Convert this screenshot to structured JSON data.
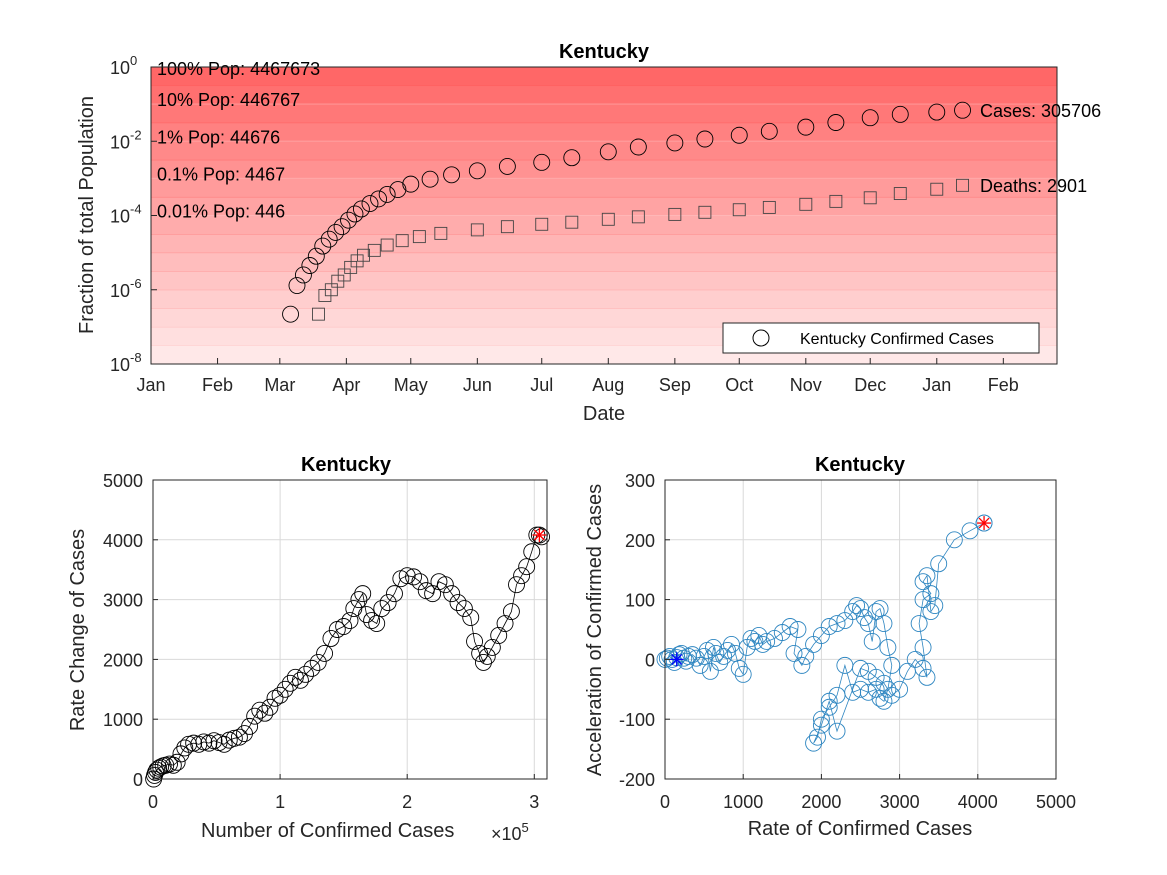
{
  "chart_data": [
    {
      "type": "scatter",
      "title": "Kentucky",
      "xlabel": "Date",
      "ylabel": "Fraction of total Population",
      "yscale": "log",
      "ylim": [
        1e-08,
        1
      ],
      "y_tick_exponents": [
        "0",
        "-2",
        "-4",
        "-6",
        "-8"
      ],
      "x_tick_labels": [
        "Jan",
        "Feb",
        "Mar",
        "Apr",
        "May",
        "Jun",
        "Jul",
        "Aug",
        "Sep",
        "Oct",
        "Nov",
        "Dec",
        "Jan",
        "Feb"
      ],
      "background_bands": "red shading by population fraction",
      "band_color": "#ff5a5a",
      "population_labels": [
        "100% Pop: 4467673",
        "10% Pop: 446767",
        "1% Pop: 44676",
        "0.1% Pop: 4467",
        "0.01% Pop: 446"
      ],
      "population_levels": [
        1,
        0.1,
        0.01,
        0.001,
        0.0001
      ],
      "legend": {
        "label": "Kentucky Confirmed Cases",
        "position": "bottom-right"
      },
      "series": [
        {
          "name": "Kentucky Confirmed Cases",
          "marker": "circle",
          "end_label": "Cases: 305706",
          "points": [
            [
              "2020-03-06",
              2.2e-07
            ],
            [
              "2020-03-09",
              1.3e-06
            ],
            [
              "2020-03-12",
              2.5e-06
            ],
            [
              "2020-03-15",
              4.5e-06
            ],
            [
              "2020-03-18",
              8e-06
            ],
            [
              "2020-03-21",
              1.5e-05
            ],
            [
              "2020-03-24",
              2.3e-05
            ],
            [
              "2020-03-27",
              3.5e-05
            ],
            [
              "2020-03-30",
              5e-05
            ],
            [
              "2020-04-02",
              7.5e-05
            ],
            [
              "2020-04-05",
              0.00011
            ],
            [
              "2020-04-08",
              0.00015
            ],
            [
              "2020-04-12",
              0.00021
            ],
            [
              "2020-04-16",
              0.00028
            ],
            [
              "2020-04-20",
              0.00037
            ],
            [
              "2020-04-25",
              0.0005
            ],
            [
              "2020-05-01",
              0.0007
            ],
            [
              "2020-05-10",
              0.00095
            ],
            [
              "2020-05-20",
              0.00125
            ],
            [
              "2020-06-01",
              0.0016
            ],
            [
              "2020-06-15",
              0.0021
            ],
            [
              "2020-07-01",
              0.0027
            ],
            [
              "2020-07-15",
              0.0036
            ],
            [
              "2020-08-01",
              0.0052
            ],
            [
              "2020-08-15",
              0.007
            ],
            [
              "2020-09-01",
              0.009
            ],
            [
              "2020-09-15",
              0.0115
            ],
            [
              "2020-10-01",
              0.0145
            ],
            [
              "2020-10-15",
              0.0185
            ],
            [
              "2020-11-01",
              0.024
            ],
            [
              "2020-11-15",
              0.032
            ],
            [
              "2020-12-01",
              0.043
            ],
            [
              "2020-12-15",
              0.053
            ],
            [
              "2021-01-01",
              0.061
            ],
            [
              "2021-01-13",
              0.0685
            ]
          ]
        },
        {
          "name": "Deaths",
          "marker": "square",
          "end_label": "Deaths: 2901",
          "points": [
            [
              "2020-03-19",
              2.2e-07
            ],
            [
              "2020-03-22",
              7e-07
            ],
            [
              "2020-03-25",
              1e-06
            ],
            [
              "2020-03-28",
              1.7e-06
            ],
            [
              "2020-03-31",
              2.5e-06
            ],
            [
              "2020-04-03",
              4e-06
            ],
            [
              "2020-04-06",
              6e-06
            ],
            [
              "2020-04-09",
              8.5e-06
            ],
            [
              "2020-04-14",
              1.15e-05
            ],
            [
              "2020-04-20",
              1.6e-05
            ],
            [
              "2020-04-27",
              2.1e-05
            ],
            [
              "2020-05-05",
              2.7e-05
            ],
            [
              "2020-05-15",
              3.3e-05
            ],
            [
              "2020-06-01",
              4.1e-05
            ],
            [
              "2020-06-15",
              5e-05
            ],
            [
              "2020-07-01",
              5.8e-05
            ],
            [
              "2020-07-15",
              6.6e-05
            ],
            [
              "2020-08-01",
              7.9e-05
            ],
            [
              "2020-08-15",
              9.2e-05
            ],
            [
              "2020-09-01",
              0.000107
            ],
            [
              "2020-09-15",
              0.000122
            ],
            [
              "2020-10-01",
              0.000143
            ],
            [
              "2020-10-15",
              0.000165
            ],
            [
              "2020-11-01",
              0.0002
            ],
            [
              "2020-11-15",
              0.00024
            ],
            [
              "2020-12-01",
              0.0003
            ],
            [
              "2020-12-15",
              0.00039
            ],
            [
              "2021-01-01",
              0.00051
            ],
            [
              "2021-01-13",
              0.00065
            ]
          ]
        }
      ]
    },
    {
      "type": "scatter",
      "title": "Kentucky",
      "xlabel": "Number of Confirmed Cases",
      "x_multiplier": "×10",
      "x_multiplier_exponent": "5",
      "ylabel": "Rate Change of Cases",
      "xlim": [
        0,
        310000
      ],
      "ylim": [
        0,
        5000
      ],
      "x_ticks": [
        0,
        100000,
        200000,
        300000
      ],
      "x_tick_labels": [
        "0",
        "1",
        "2",
        "3"
      ],
      "y_ticks": [
        0,
        1000,
        2000,
        3000,
        4000,
        5000
      ],
      "grid": true,
      "marker_color": "#000000",
      "series": [
        {
          "marker": "circle",
          "points": [
            [
              500,
              0
            ],
            [
              1200,
              60
            ],
            [
              2000,
              110
            ],
            [
              3000,
              150
            ],
            [
              4500,
              180
            ],
            [
              6000,
              200
            ],
            [
              8000,
              220
            ],
            [
              10000,
              230
            ],
            [
              13000,
              250
            ],
            [
              16000,
              230
            ],
            [
              19000,
              280
            ],
            [
              22000,
              420
            ],
            [
              25000,
              520
            ],
            [
              28000,
              580
            ],
            [
              32000,
              600
            ],
            [
              36000,
              580
            ],
            [
              40000,
              620
            ],
            [
              44000,
              600
            ],
            [
              48000,
              640
            ],
            [
              52000,
              610
            ],
            [
              56000,
              580
            ],
            [
              60000,
              650
            ],
            [
              64000,
              680
            ],
            [
              68000,
              700
            ],
            [
              72000,
              760
            ],
            [
              76000,
              880
            ],
            [
              80000,
              1050
            ],
            [
              84000,
              1150
            ],
            [
              88000,
              1100
            ],
            [
              92000,
              1200
            ],
            [
              96000,
              1350
            ],
            [
              100000,
              1400
            ],
            [
              104000,
              1500
            ],
            [
              108000,
              1600
            ],
            [
              112000,
              1700
            ],
            [
              116000,
              1650
            ],
            [
              120000,
              1750
            ],
            [
              125000,
              1850
            ],
            [
              130000,
              1950
            ],
            [
              135000,
              2100
            ],
            [
              140000,
              2350
            ],
            [
              145000,
              2500
            ],
            [
              150000,
              2550
            ],
            [
              155000,
              2650
            ],
            [
              158000,
              2850
            ],
            [
              162000,
              3000
            ],
            [
              165000,
              3100
            ],
            [
              168000,
              2750
            ],
            [
              172000,
              2650
            ],
            [
              176000,
              2600
            ],
            [
              180000,
              2850
            ],
            [
              185000,
              2950
            ],
            [
              190000,
              3100
            ],
            [
              195000,
              3350
            ],
            [
              200000,
              3400
            ],
            [
              205000,
              3380
            ],
            [
              210000,
              3300
            ],
            [
              215000,
              3150
            ],
            [
              220000,
              3100
            ],
            [
              225000,
              3300
            ],
            [
              230000,
              3250
            ],
            [
              235000,
              3100
            ],
            [
              240000,
              2950
            ],
            [
              245000,
              2850
            ],
            [
              250000,
              2700
            ],
            [
              253000,
              2300
            ],
            [
              257000,
              2100
            ],
            [
              260000,
              1950
            ],
            [
              263000,
              2050
            ],
            [
              267000,
              2200
            ],
            [
              272000,
              2400
            ],
            [
              277000,
              2600
            ],
            [
              282000,
              2800
            ],
            [
              286000,
              3250
            ],
            [
              290000,
              3400
            ],
            [
              294000,
              3550
            ],
            [
              298000,
              3800
            ],
            [
              302000,
              4080
            ],
            [
              305706,
              4050
            ]
          ]
        }
      ],
      "current_point": {
        "marker": "star",
        "color": "#ff0000",
        "x": 304000,
        "y": 4080
      }
    },
    {
      "type": "scatter",
      "title": "Kentucky",
      "xlabel": "Rate of Confirmed Cases",
      "ylabel": "Acceleration of Confirmed Cases",
      "xlim": [
        0,
        5000
      ],
      "ylim": [
        -200,
        300
      ],
      "x_ticks": [
        0,
        1000,
        2000,
        3000,
        4000,
        5000
      ],
      "y_ticks": [
        -200,
        -100,
        0,
        100,
        200,
        300
      ],
      "grid": true,
      "marker_color": "#2e86c1",
      "series": [
        {
          "marker": "circle",
          "points": [
            [
              0,
              0
            ],
            [
              30,
              2
            ],
            [
              60,
              5
            ],
            [
              90,
              0
            ],
            [
              120,
              -5
            ],
            [
              150,
              3
            ],
            [
              180,
              8
            ],
            [
              210,
              10
            ],
            [
              240,
              2
            ],
            [
              270,
              -3
            ],
            [
              300,
              5
            ],
            [
              350,
              8
            ],
            [
              400,
              2
            ],
            [
              450,
              -10
            ],
            [
              500,
              5
            ],
            [
              540,
              15
            ],
            [
              580,
              -20
            ],
            [
              620,
              20
            ],
            [
              650,
              10
            ],
            [
              700,
              -5
            ],
            [
              750,
              5
            ],
            [
              800,
              15
            ],
            [
              850,
              25
            ],
            [
              900,
              10
            ],
            [
              950,
              -15
            ],
            [
              1000,
              -25
            ],
            [
              1050,
              20
            ],
            [
              1100,
              35
            ],
            [
              1150,
              30
            ],
            [
              1200,
              40
            ],
            [
              1250,
              25
            ],
            [
              1300,
              30
            ],
            [
              1400,
              35
            ],
            [
              1500,
              45
            ],
            [
              1600,
              55
            ],
            [
              1700,
              50
            ],
            [
              1650,
              10
            ],
            [
              1750,
              -10
            ],
            [
              1800,
              5
            ],
            [
              1900,
              25
            ],
            [
              2000,
              40
            ],
            [
              2100,
              55
            ],
            [
              2200,
              60
            ],
            [
              2300,
              65
            ],
            [
              2400,
              80
            ],
            [
              2450,
              90
            ],
            [
              2500,
              85
            ],
            [
              2550,
              70
            ],
            [
              2600,
              60
            ],
            [
              2650,
              30
            ],
            [
              2700,
              80
            ],
            [
              2750,
              85
            ],
            [
              2800,
              60
            ],
            [
              2850,
              20
            ],
            [
              2900,
              -10
            ],
            [
              2850,
              -50
            ],
            [
              2800,
              -70
            ],
            [
              2750,
              -65
            ],
            [
              2700,
              -50
            ],
            [
              2600,
              -55
            ],
            [
              2500,
              -50
            ],
            [
              2400,
              -55
            ],
            [
              2300,
              -10
            ],
            [
              2200,
              -60
            ],
            [
              2100,
              -80
            ],
            [
              2000,
              -100
            ],
            [
              1950,
              -130
            ],
            [
              1900,
              -140
            ],
            [
              2000,
              -110
            ],
            [
              2100,
              -70
            ],
            [
              2200,
              -120
            ],
            [
              2500,
              -15
            ],
            [
              2600,
              -20
            ],
            [
              2700,
              -30
            ],
            [
              2800,
              -40
            ],
            [
              2900,
              -60
            ],
            [
              3000,
              -50
            ],
            [
              3100,
              -20
            ],
            [
              3200,
              0
            ],
            [
              3300,
              -15
            ],
            [
              3350,
              -30
            ],
            [
              3300,
              20
            ],
            [
              3250,
              60
            ],
            [
              3300,
              100
            ],
            [
              3400,
              110
            ],
            [
              3300,
              130
            ],
            [
              3350,
              140
            ],
            [
              3400,
              80
            ],
            [
              3450,
              90
            ],
            [
              3500,
              160
            ],
            [
              3700,
              200
            ],
            [
              3900,
              215
            ],
            [
              4080,
              228
            ]
          ]
        }
      ],
      "start_point": {
        "marker": "star",
        "color": "#0000ff",
        "x": 150,
        "y": 0
      },
      "current_point": {
        "marker": "star",
        "color": "#ff0000",
        "x": 4080,
        "y": 228
      }
    }
  ]
}
